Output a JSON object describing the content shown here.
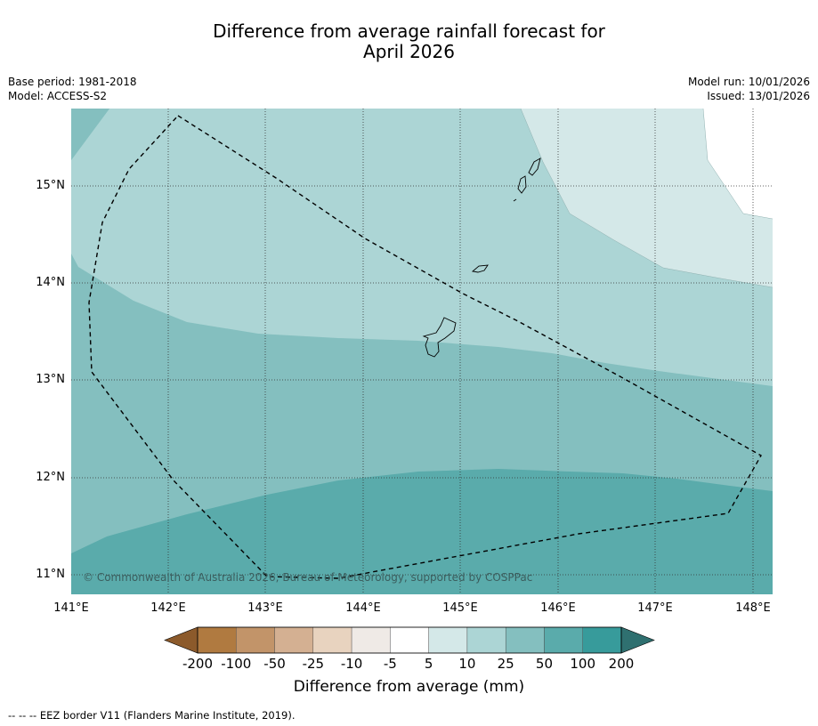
{
  "header": {
    "title_line1": "Difference from average rainfall forecast for",
    "title_line2": "April 2026",
    "base_period": "Base period: 1981-2018",
    "model": "Model: ACCESS-S2",
    "model_run": "Model run: 10/01/2026",
    "issued": "Issued: 13/01/2026"
  },
  "map": {
    "lat_labels": [
      "15°N",
      "14°N",
      "13°N",
      "12°N",
      "11°N"
    ],
    "lon_labels": [
      "141°E",
      "142°E",
      "143°E",
      "144°E",
      "145°E",
      "146°E",
      "147°E",
      "148°E"
    ],
    "copyright": "© Commonwealth of Australia 2026, Bureau of Meteorology, supported by COSPPac"
  },
  "colorbar": {
    "ticks": [
      "-200",
      "-100",
      "-50",
      "-25",
      "-10",
      "-5",
      "5",
      "10",
      "25",
      "50",
      "100",
      "200"
    ],
    "colors": [
      "#8c5a2b",
      "#b07a40",
      "#c29469",
      "#d4b092",
      "#e8d3bf",
      "#efeae6",
      "#ffffff",
      "#d4e8e8",
      "#acd5d5",
      "#84bfbf",
      "#5aabab",
      "#379b9b",
      "#2f7070"
    ],
    "title": "Difference from average (mm)"
  },
  "footer": {
    "legend": "--  --  -- EEZ border V11 (Flanders Marine Institute, 2019)."
  }
}
